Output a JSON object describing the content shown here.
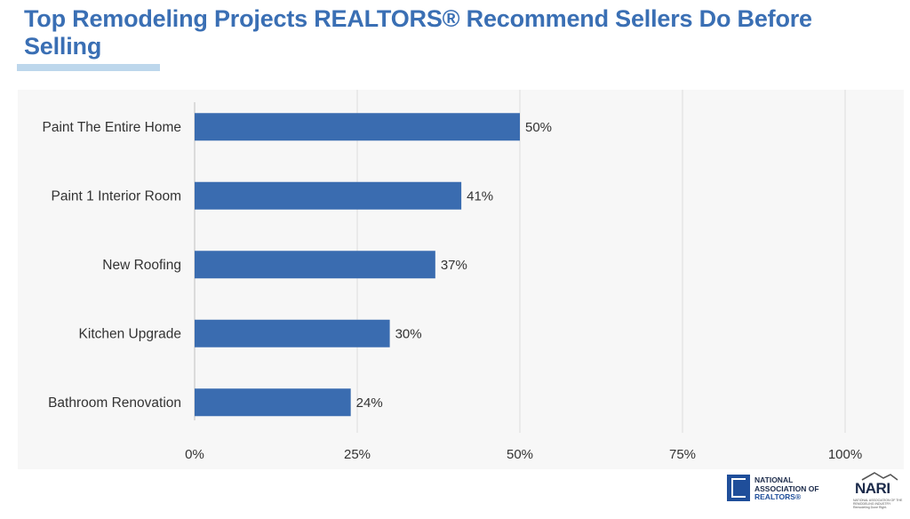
{
  "header": {
    "title": "Top Remodeling Projects REALTORS® Recommend Sellers Do Before Selling"
  },
  "chart_data": {
    "type": "bar",
    "orientation": "horizontal",
    "title": "Top Remodeling Projects REALTORS® Recommend Sellers Do Before Selling",
    "categories": [
      "Paint The Entire Home",
      "Paint 1 Interior Room",
      "New Roofing",
      "Kitchen Upgrade",
      "Bathroom Renovation"
    ],
    "values": [
      50,
      41,
      37,
      30,
      24
    ],
    "data_labels": [
      "50%",
      "41%",
      "37%",
      "30%",
      "24%"
    ],
    "xlim": [
      0,
      100
    ],
    "x_ticks": [
      0,
      25,
      50,
      75,
      100
    ],
    "x_tick_labels": [
      "0%",
      "25%",
      "50%",
      "75%",
      "100%"
    ],
    "xlabel": "",
    "ylabel": "",
    "grid": true,
    "bar_color": "#3a6cb0"
  },
  "logos": {
    "nar_line1": "NATIONAL",
    "nar_line2": "ASSOCIATION OF",
    "nar_line3": "REALTORS®",
    "nari_name": "NARI",
    "nari_sub": "NATIONAL ASSOCIATION OF THE REMODELING INDUSTRY",
    "nari_tagline": "Remodeling Done Right."
  }
}
